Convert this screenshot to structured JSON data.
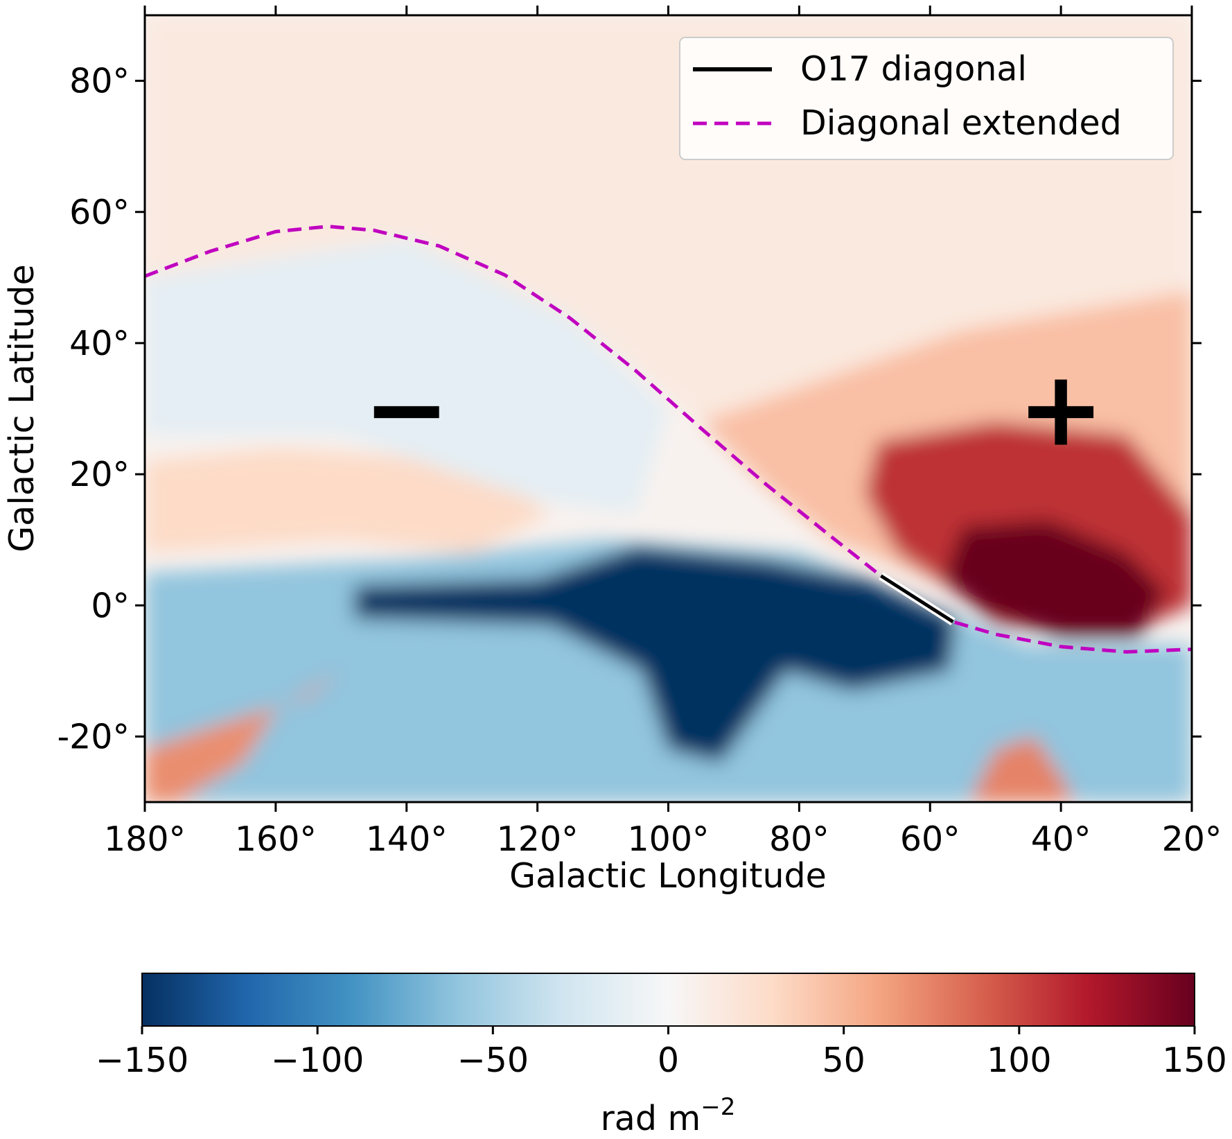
{
  "chart_data": {
    "type": "heatmap",
    "title": "",
    "xlabel": "Galactic Longitude",
    "ylabel": "Galactic Latitude",
    "xlim": [
      180,
      20
    ],
    "ylim": [
      -30,
      90
    ],
    "x_ticks": [
      180,
      160,
      140,
      120,
      100,
      80,
      60,
      40,
      20
    ],
    "x_tick_labels": [
      "180°",
      "160°",
      "140°",
      "120°",
      "100°",
      "80°",
      "60°",
      "40°",
      "20°"
    ],
    "y_ticks": [
      80,
      60,
      40,
      20,
      0,
      -20
    ],
    "y_tick_labels": [
      "80°",
      "60°",
      "40°",
      "20°",
      "0°",
      "-20°"
    ],
    "series": [
      {
        "name": "O17 diagonal",
        "style": "solid",
        "color": "#000000",
        "points": [
          [
            67.5,
            4.5
          ],
          [
            56.5,
            -2.5
          ]
        ]
      },
      {
        "name": "Diagonal extended",
        "style": "dashed",
        "color": "#c000c0",
        "points": [
          [
            180,
            50.2
          ],
          [
            170,
            54
          ],
          [
            160,
            57
          ],
          [
            152,
            57.8
          ],
          [
            145,
            57.2
          ],
          [
            135,
            54.8
          ],
          [
            125,
            50.4
          ],
          [
            115,
            43.8
          ],
          [
            105,
            35.8
          ],
          [
            95,
            27
          ],
          [
            85,
            18.4
          ],
          [
            75,
            10.4
          ],
          [
            67.5,
            4.5
          ],
          [
            60,
            -0.4
          ],
          [
            56.5,
            -2.5
          ],
          [
            50,
            -4.4
          ],
          [
            40,
            -6.3
          ],
          [
            30,
            -7.1
          ],
          [
            20,
            -6.7
          ]
        ]
      }
    ],
    "annotations": [
      {
        "text": "−",
        "lon": 140,
        "lat": 30
      },
      {
        "text": "+",
        "lon": 40,
        "lat": 30
      }
    ],
    "colorbar": {
      "label": "rad m",
      "label_superscript": "−2",
      "vmin": -150,
      "vmax": 150,
      "ticks": [
        -150,
        -100,
        -50,
        0,
        50,
        100,
        150
      ],
      "tick_labels": [
        "−150",
        "−100",
        "−50",
        "0",
        "50",
        "100",
        "150"
      ],
      "colormap_stops": [
        "#053061",
        "#2166ac",
        "#4393c3",
        "#92c5de",
        "#d1e5f0",
        "#f7f7f7",
        "#fddbc7",
        "#f4a582",
        "#d6604d",
        "#b2182b",
        "#67001f"
      ]
    },
    "legend": {
      "position": "upper right",
      "entries": [
        "O17 diagonal",
        "Diagonal extended"
      ]
    },
    "regions": [
      {
        "name": "faint-positive-high-latitude",
        "value": 15,
        "poly": [
          [
            180,
            90
          ],
          [
            20,
            90
          ],
          [
            20,
            48
          ],
          [
            55,
            42
          ],
          [
            95,
            28
          ],
          [
            115,
            44
          ],
          [
            140,
            56
          ],
          [
            180,
            50
          ]
        ]
      },
      {
        "name": "positive-north-east",
        "value": 45,
        "poly": [
          [
            95,
            28
          ],
          [
            55,
            42
          ],
          [
            20,
            48
          ],
          [
            20,
            5
          ],
          [
            55,
            2
          ],
          [
            75,
            10
          ],
          [
            85,
            18
          ]
        ]
      },
      {
        "name": "positive-band-west",
        "value": 30,
        "poly": [
          [
            180,
            22
          ],
          [
            160,
            24
          ],
          [
            130,
            22
          ],
          [
            118,
            14
          ],
          [
            130,
            8
          ],
          [
            150,
            10
          ],
          [
            180,
            8
          ]
        ]
      },
      {
        "name": "weak-negative-north-west",
        "value": -15,
        "poly": [
          [
            180,
            50
          ],
          [
            140,
            56
          ],
          [
            115,
            44
          ],
          [
            100,
            30
          ],
          [
            105,
            14
          ],
          [
            120,
            16
          ],
          [
            150,
            26
          ],
          [
            180,
            26
          ]
        ]
      },
      {
        "name": "negative-plane-wide",
        "value": -60,
        "poly": [
          [
            180,
            5
          ],
          [
            140,
            7
          ],
          [
            110,
            10
          ],
          [
            80,
            8
          ],
          [
            60,
            0
          ],
          [
            45,
            -6
          ],
          [
            20,
            -6
          ],
          [
            20,
            -30
          ],
          [
            180,
            -30
          ]
        ]
      },
      {
        "name": "negative-plane-core",
        "value": -150,
        "poly": [
          [
            148,
            3
          ],
          [
            120,
            4
          ],
          [
            105,
            9
          ],
          [
            85,
            7
          ],
          [
            70,
            4
          ],
          [
            56,
            -2
          ],
          [
            57,
            -10
          ],
          [
            72,
            -13
          ],
          [
            82,
            -10
          ],
          [
            92,
            -24
          ],
          [
            100,
            -22
          ],
          [
            104,
            -10
          ],
          [
            118,
            -3
          ],
          [
            148,
            -2
          ]
        ]
      },
      {
        "name": "positive-blob-south-west",
        "value": 70,
        "poly": [
          [
            175,
            -30
          ],
          [
            165,
            -24
          ],
          [
            160,
            -16
          ],
          [
            150,
            -10
          ],
          [
            155,
            -14
          ],
          [
            168,
            -18
          ],
          [
            180,
            -22
          ],
          [
            180,
            -30
          ]
        ]
      },
      {
        "name": "positive-core-north-east",
        "value": 110,
        "poly": [
          [
            68,
            25
          ],
          [
            50,
            28
          ],
          [
            30,
            26
          ],
          [
            20,
            14
          ],
          [
            20,
            0
          ],
          [
            32,
            -5
          ],
          [
            50,
            -3
          ],
          [
            56,
            2
          ],
          [
            65,
            8
          ],
          [
            70,
            17
          ]
        ]
      },
      {
        "name": "positive-peak",
        "value": 150,
        "poly": [
          [
            55,
            12
          ],
          [
            42,
            13
          ],
          [
            30,
            8
          ],
          [
            24,
            2
          ],
          [
            28,
            -5
          ],
          [
            40,
            -5
          ],
          [
            52,
            -1
          ],
          [
            58,
            4
          ]
        ]
      },
      {
        "name": "positive-patch-south",
        "value": 75,
        "poly": [
          [
            54,
            -30
          ],
          [
            50,
            -22
          ],
          [
            44,
            -20
          ],
          [
            40,
            -26
          ],
          [
            38,
            -30
          ]
        ]
      }
    ]
  }
}
